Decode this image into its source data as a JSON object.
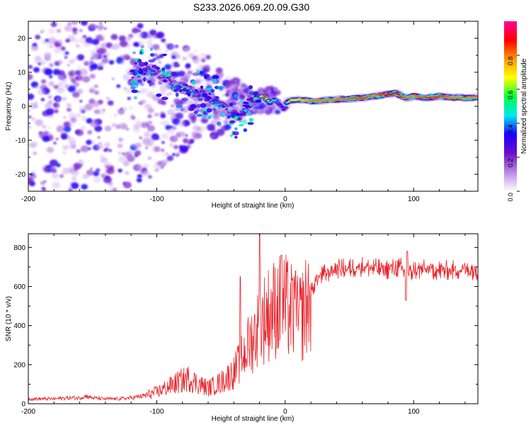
{
  "title": "S233.2026.069.20.09.G30",
  "colors": {
    "snr_line": "#e8242b",
    "frame": "#000000",
    "background": "#ffffff",
    "colormap": [
      "#ffffff",
      "#b98ae6",
      "#6e10c8",
      "#1a00ff",
      "#00e8f0",
      "#00ff40",
      "#ffff00",
      "#ff9900",
      "#ff0000",
      "#ff0099"
    ]
  },
  "colorbar": {
    "label": "Normalized spectral amplitude",
    "range": [
      0,
      1
    ],
    "ticks": [
      "0.0",
      "0.2",
      "0.4",
      "0.6",
      "0.8"
    ],
    "tick_values": [
      0,
      0.2,
      0.4,
      0.6,
      0.8
    ]
  },
  "chart_data": [
    {
      "type": "heatmap",
      "title": "S233.2026.069.20.09.G30",
      "xlabel": "Height of straight line (km)",
      "ylabel": "Frequency (Hz)",
      "xlim": [
        -200,
        150
      ],
      "ylim": [
        -25,
        25
      ],
      "xticks": [
        -200,
        -100,
        0,
        100
      ],
      "xtick_labels": [
        "-200",
        "-100",
        "0",
        "100"
      ],
      "yticks": [
        -20,
        -10,
        0,
        10,
        20
      ],
      "ytick_labels": [
        "-20",
        "-10",
        "0",
        "10",
        "20"
      ],
      "ridge": {
        "description": "dominant frequency ridge (Hz) vs height (km)",
        "x": [
          -120,
          -105,
          -95,
          -85,
          -78,
          -70,
          -62,
          -55,
          -48,
          -42,
          -36,
          -30,
          -25,
          -20,
          -16,
          -12,
          -8,
          -4,
          -1,
          2,
          10,
          20,
          40,
          60,
          70,
          80,
          85,
          90,
          95,
          100,
          110,
          120,
          130,
          140,
          150
        ],
        "y": [
          9,
          11,
          9,
          6,
          5,
          4,
          3,
          2,
          0,
          -2,
          -4,
          0,
          2,
          3,
          3,
          1,
          2,
          0.5,
          -1,
          1.5,
          2,
          1.5,
          2,
          2.5,
          3,
          3.5,
          4,
          3,
          2.5,
          3,
          2.5,
          3,
          2.5,
          2.5,
          2.5
        ],
        "amplitude": [
          0.3,
          0.35,
          0.4,
          0.35,
          0.45,
          0.4,
          0.35,
          0.4,
          0.35,
          0.4,
          0.45,
          0.35,
          0.5,
          0.55,
          0.9,
          0.5,
          0.45,
          0.35,
          0.3,
          0.6,
          0.7,
          0.8,
          0.8,
          0.85,
          0.8,
          0.9,
          0.95,
          0.85,
          0.8,
          0.8,
          0.85,
          0.85,
          0.8,
          0.8,
          0.8
        ]
      },
      "noise_region": {
        "x_from": -200,
        "x_to": -30,
        "amplitude": "0.05-0.35 scattered"
      }
    },
    {
      "type": "line",
      "xlabel": "Height of straight line (km)",
      "ylabel": "SNR (10 * v/v)",
      "xlim": [
        -200,
        150
      ],
      "ylim": [
        0,
        870
      ],
      "xticks": [
        -200,
        -100,
        0,
        100
      ],
      "xtick_labels": [
        "-200",
        "-100",
        "0",
        "100"
      ],
      "yticks": [
        0,
        200,
        400,
        600,
        800
      ],
      "ytick_labels": [
        "0",
        "200",
        "400",
        "600",
        "800"
      ],
      "series": [
        {
          "name": "SNR",
          "x": [
            -200,
            -190,
            -180,
            -170,
            -160,
            -155,
            -150,
            -140,
            -130,
            -120,
            -110,
            -100,
            -90,
            -80,
            -75,
            -70,
            -60,
            -50,
            -40,
            -35,
            -30,
            -25,
            -20,
            -15,
            -10,
            -5,
            0,
            5,
            10,
            15,
            20,
            25,
            30,
            40,
            50,
            60,
            70,
            80,
            90,
            95,
            100,
            110,
            120,
            130,
            140,
            150
          ],
          "values": [
            25,
            25,
            25,
            30,
            30,
            40,
            30,
            25,
            25,
            30,
            40,
            60,
            90,
            120,
            130,
            110,
            80,
            110,
            160,
            220,
            280,
            340,
            400,
            450,
            480,
            500,
            500,
            470,
            420,
            480,
            560,
            630,
            650,
            680,
            680,
            690,
            680,
            675,
            685,
            640,
            670,
            675,
            670,
            672,
            675,
            670
          ],
          "spikes": [
            {
              "x": -35,
              "value": 650
            },
            {
              "x": -20,
              "value": 870
            },
            {
              "x": -3,
              "value": 760
            },
            {
              "x": 8,
              "value": 680
            },
            {
              "x": 95,
              "value": 780
            },
            {
              "x": 94,
              "value": 530
            }
          ]
        }
      ]
    }
  ]
}
